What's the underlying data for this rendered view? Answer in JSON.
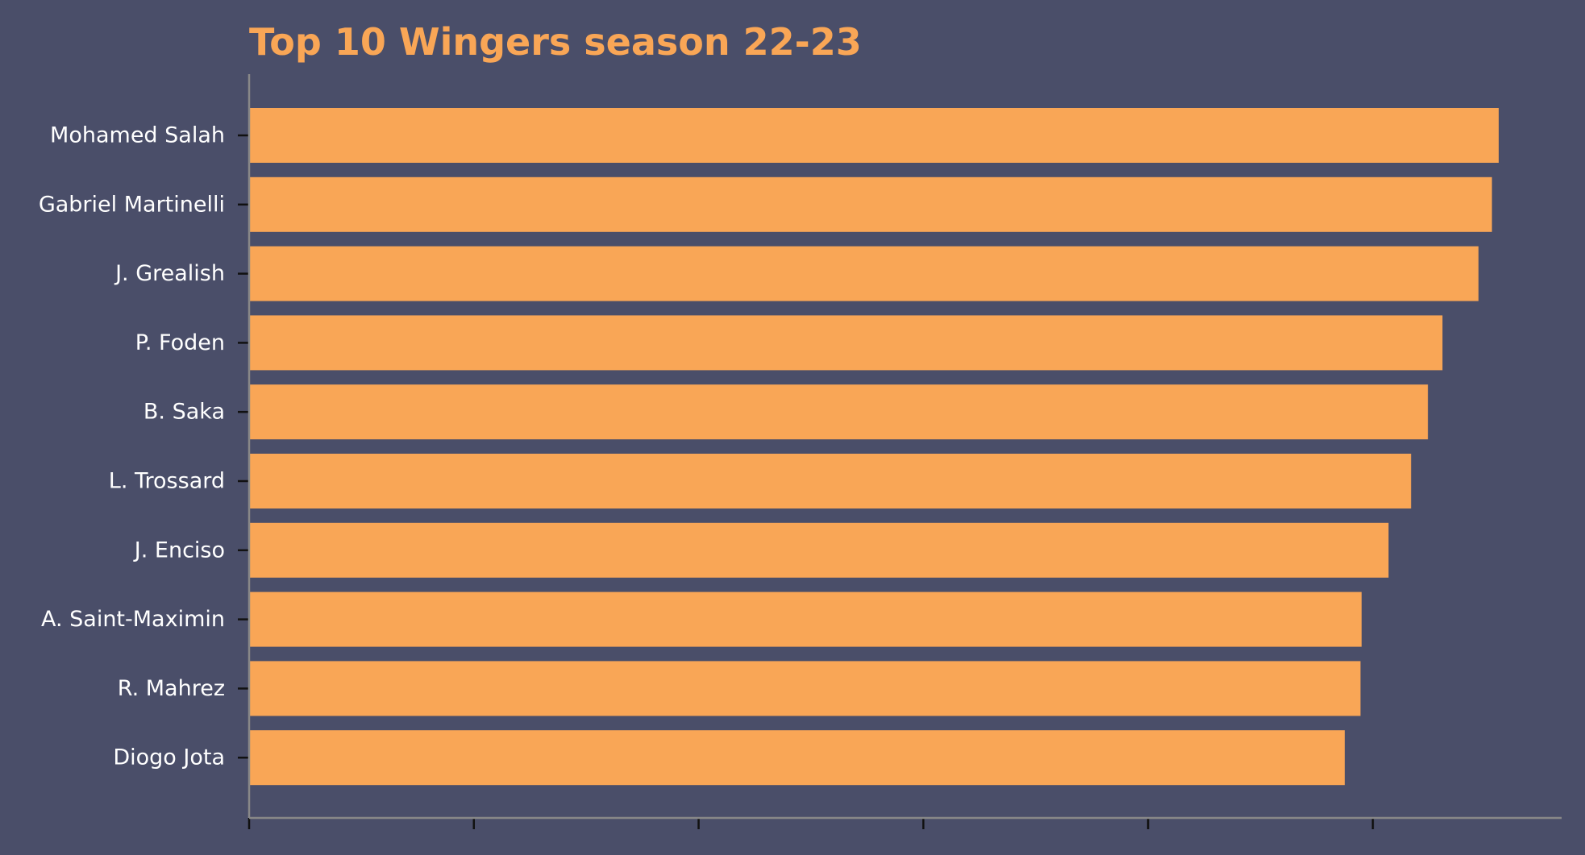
{
  "chart_data": {
    "type": "bar",
    "orientation": "horizontal",
    "title": "Top 10 Wingers season 22-23",
    "xlabel": "",
    "ylabel": "",
    "categories": [
      "Mohamed Salah",
      "Gabriel Martinelli",
      "J. Grealish",
      "P. Foden",
      "B. Saka",
      "L. Trossard",
      "J. Enciso",
      "A. Saint-Maximin",
      "R. Mahrez",
      "Diogo Jota"
    ],
    "values": [
      5.56,
      5.53,
      5.47,
      5.31,
      5.245,
      5.17,
      5.07,
      4.95,
      4.945,
      4.875
    ],
    "xlim": [
      0,
      5.84
    ],
    "x_tick_values": [
      0,
      1,
      2,
      3,
      4,
      5
    ],
    "x_tick_labels_visible": false,
    "grid": false,
    "legend": "none"
  },
  "colors": {
    "background": "#4a4e69",
    "bar": "#f9a656",
    "title": "#f9a656",
    "label": "#ffffff",
    "spine": "#888888",
    "tick": "#111111"
  }
}
